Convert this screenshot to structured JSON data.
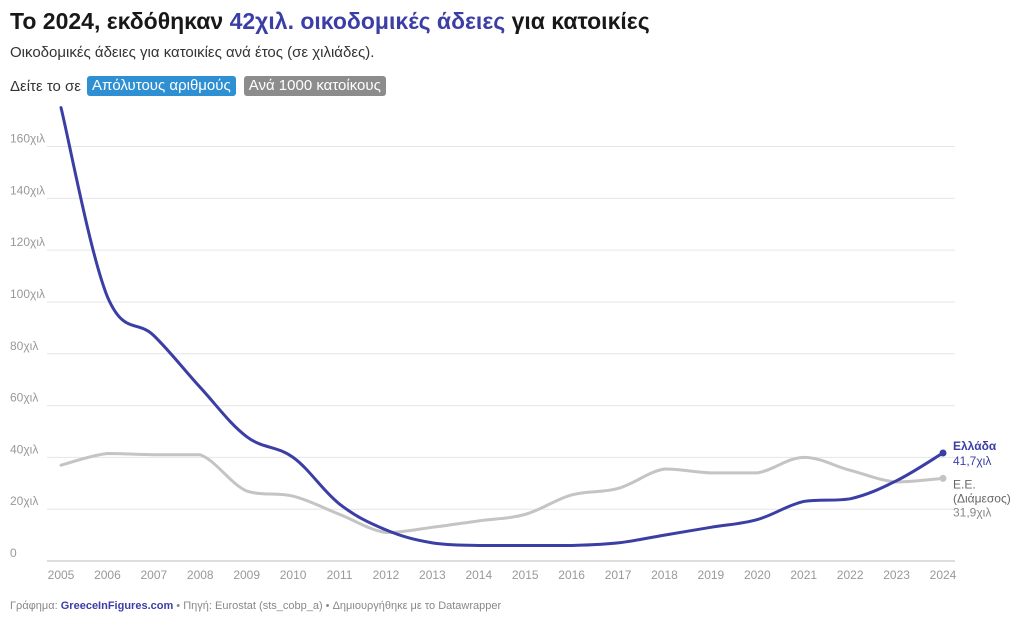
{
  "header": {
    "title_prefix": "Το 2024, εκδόθηκαν",
    "title_highlight": "42χιλ. οικοδομικές άδειες",
    "title_suffix": "για κατοικίες",
    "subtitle": "Οικοδομικές άδειες για κατοικίες ανά έτος (σε χιλιάδες)."
  },
  "toggle": {
    "prefix": "Δείτε το σε",
    "options": [
      "Απόλυτους αριθμούς",
      "Ανά 1000 κατοίκους"
    ],
    "selected": "Απόλυτους αριθμούς"
  },
  "footer": {
    "chart_label": "Γράφημα:",
    "brand": "GreeceInFigures.com",
    "rest": " • Πηγή: Eurostat (sts_cobp_a) • Δημιουργήθηκε με το Datawrapper"
  },
  "colors": {
    "greece": "#3b3ea5",
    "eu": "#c4c4c4",
    "grid": "#e6e6e6",
    "toggle_active": "#2f8fd3",
    "toggle_inactive": "#8c8c8c"
  },
  "chart_data": {
    "type": "line",
    "x": [
      2005,
      2006,
      2007,
      2008,
      2009,
      2010,
      2011,
      2012,
      2013,
      2014,
      2015,
      2016,
      2017,
      2018,
      2019,
      2020,
      2021,
      2022,
      2023,
      2024
    ],
    "x_tick_labels": [
      "2005",
      "2006",
      "2007",
      "2008",
      "2009",
      "2010",
      "2011",
      "2012",
      "2013",
      "2014",
      "2015",
      "2016",
      "2017",
      "2018",
      "2019",
      "2020",
      "2021",
      "2022",
      "2023",
      "2024"
    ],
    "y_ticks": [
      0,
      20,
      40,
      60,
      80,
      100,
      120,
      140,
      160
    ],
    "y_tick_labels": [
      "0",
      "20χιλ",
      "40χιλ",
      "60χιλ",
      "80χιλ",
      "100χιλ",
      "120χιλ",
      "140χιλ",
      "160χιλ"
    ],
    "ylim": [
      0,
      175
    ],
    "grid": true,
    "series": [
      {
        "name": "Ελλάδα",
        "end_label": "41,7χιλ",
        "values": [
          175,
          102,
          87,
          67,
          48,
          40,
          22,
          12,
          7,
          6,
          6,
          6,
          7,
          10,
          13,
          16,
          23,
          24,
          31,
          41.7
        ]
      },
      {
        "name": "Ε.Ε. (Διάμεσος)",
        "name_lines": [
          "Ε.Ε.",
          "(Διάμεσος)"
        ],
        "end_label": "31,9χιλ",
        "values": [
          37,
          41.5,
          41,
          41,
          27,
          25,
          18,
          11,
          13,
          15.5,
          18,
          25.5,
          28,
          35.5,
          34,
          34,
          40,
          35,
          30.5,
          31.9
        ]
      }
    ]
  }
}
